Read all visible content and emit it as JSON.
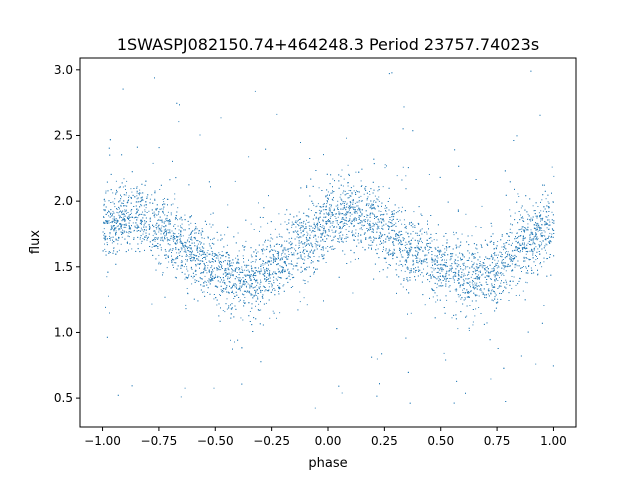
{
  "chart_data": {
    "type": "scatter",
    "title": "1SWASPJ082150.74+464248.3 Period 23757.74023s",
    "xlabel": "phase",
    "ylabel": "flux",
    "xlim": [
      -1.1,
      1.1
    ],
    "ylim": [
      0.28,
      3.09
    ],
    "xticks": [
      -1.0,
      -0.75,
      -0.5,
      -0.25,
      0.0,
      0.25,
      0.5,
      0.75,
      1.0
    ],
    "xtick_labels": [
      "−1.00",
      "−0.75",
      "−0.50",
      "−0.25",
      "0.00",
      "0.25",
      "0.50",
      "0.75",
      "1.00"
    ],
    "yticks": [
      0.5,
      1.0,
      1.5,
      2.0,
      2.5,
      3.0
    ],
    "ytick_labels": [
      "0.5",
      "1.0",
      "1.5",
      "2.0",
      "2.5",
      "3.0"
    ],
    "grid": false,
    "legend": "none",
    "point_color": "#1f77b4",
    "series": [
      {
        "x_range": [
          -1.0,
          1.0
        ],
        "y_range": [
          0.42,
          3.0
        ],
        "trend": [
          {
            "x": -1.0,
            "y": 1.82
          },
          {
            "x": -0.875,
            "y": 1.9
          },
          {
            "x": -0.75,
            "y": 1.8
          },
          {
            "x": -0.625,
            "y": 1.65
          },
          {
            "x": -0.5,
            "y": 1.48
          },
          {
            "x": -0.375,
            "y": 1.4
          },
          {
            "x": -0.25,
            "y": 1.48
          },
          {
            "x": -0.125,
            "y": 1.68
          },
          {
            "x": 0.0,
            "y": 1.83
          },
          {
            "x": 0.125,
            "y": 1.9
          },
          {
            "x": 0.25,
            "y": 1.8
          },
          {
            "x": 0.375,
            "y": 1.64
          },
          {
            "x": 0.5,
            "y": 1.48
          },
          {
            "x": 0.625,
            "y": 1.4
          },
          {
            "x": 0.75,
            "y": 1.48
          },
          {
            "x": 0.875,
            "y": 1.68
          },
          {
            "x": 1.0,
            "y": 1.82
          }
        ],
        "band_width": 0.5
      }
    ]
  }
}
